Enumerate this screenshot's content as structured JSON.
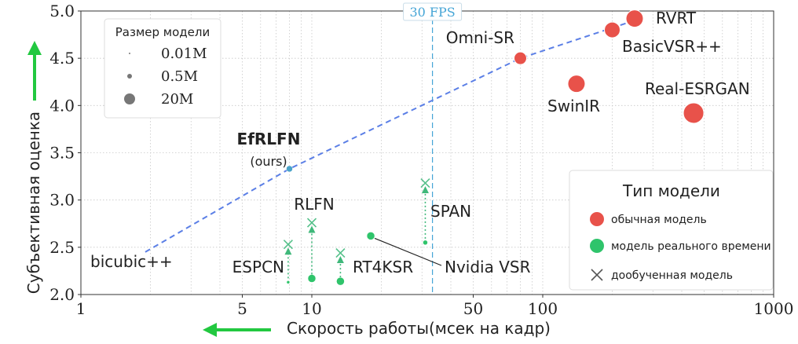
{
  "chart_data": {
    "type": "scatter",
    "xlabel": "Скорость работы(мсек на кадр)",
    "ylabel": "Субъективная оценка",
    "x_scale": "log",
    "xlim": [
      1,
      1000
    ],
    "ylim": [
      2.0,
      5.0
    ],
    "x_ticks": [
      1,
      5,
      10,
      50,
      100,
      1000
    ],
    "x_tick_labels": [
      "1",
      "5",
      "10",
      "50",
      "100",
      "1000"
    ],
    "y_ticks": [
      2.0,
      2.5,
      3.0,
      3.5,
      4.0,
      4.5,
      5.0
    ],
    "y_tick_labels": [
      "2.0",
      "2.5",
      "3.0",
      "3.5",
      "4.0",
      "4.5",
      "5.0"
    ],
    "grid": true,
    "fps_line": {
      "x": 33.3,
      "label": "30 FPS"
    },
    "trend_line": [
      [
        1.9,
        2.45
      ],
      [
        8.0,
        3.33
      ],
      [
        80,
        4.5
      ],
      [
        250,
        4.9
      ]
    ],
    "points": [
      {
        "name": "RVRT",
        "x": 250,
        "y": 4.92,
        "kind": "regular",
        "size": 11
      },
      {
        "name": "BasicVSR++",
        "x": 200,
        "y": 4.8,
        "kind": "regular",
        "size": 10
      },
      {
        "name": "Omni-SR",
        "x": 80,
        "y": 4.5,
        "kind": "regular",
        "size": 8
      },
      {
        "name": "SwinIR",
        "x": 140,
        "y": 4.23,
        "kind": "regular",
        "size": 11
      },
      {
        "name": "Real-ESRGAN",
        "x": 450,
        "y": 3.92,
        "kind": "regular",
        "size": 13
      },
      {
        "name": "EfRLFN",
        "x": 8.0,
        "y": 3.33,
        "kind": "ours",
        "size": 4
      },
      {
        "name": "Nvidia VSR",
        "x": 18,
        "y": 2.62,
        "kind": "realtime",
        "size": 5
      },
      {
        "name": "SPAN",
        "x": 31,
        "y": 2.55,
        "kind": "realtime",
        "size": 3
      },
      {
        "name": "RLFN",
        "x": 10,
        "y": 2.17,
        "kind": "realtime",
        "size": 5
      },
      {
        "name": "RT4KSR",
        "x": 13.3,
        "y": 2.14,
        "kind": "realtime",
        "size": 5
      },
      {
        "name": "ESPCN",
        "x": 7.9,
        "y": 2.13,
        "kind": "realtime",
        "size": 2
      },
      {
        "name": "bicubic++",
        "x": 1.9,
        "y": 2.45,
        "kind": "none",
        "size": 0
      }
    ],
    "finetuned": [
      {
        "name": "SPAN",
        "x": 31,
        "y_from": 2.55,
        "y_to": 3.18
      },
      {
        "name": "RLFN",
        "x": 10,
        "y_from": 2.17,
        "y_to": 2.76
      },
      {
        "name": "RT4KSR",
        "x": 13.3,
        "y_from": 2.14,
        "y_to": 2.44
      },
      {
        "name": "ESPCN",
        "x": 7.9,
        "y_from": 2.13,
        "y_to": 2.53
      }
    ],
    "labels": {
      "RVRT": "RVRT",
      "BasicVSR++": "BasicVSR++",
      "Omni-SR": "Omni-SR",
      "SwinIR": "SwinIR",
      "Real-ESRGAN": "Real-ESRGAN",
      "EfRLFN": "EfRLFN",
      "EfRLFN_sub": "(ours)",
      "Nvidia VSR": "Nvidia VSR",
      "SPAN": "SPAN",
      "RLFN": "RLFN",
      "RT4KSR": "RT4KSR",
      "ESPCN": "ESPCN",
      "bicubic++": "bicubic++"
    },
    "size_legend": {
      "title": "Размер модели",
      "entries": [
        "0.01M",
        "0.5M",
        "20M"
      ]
    },
    "type_legend": {
      "title": "Тип модели",
      "entries": [
        "обычная модель",
        "модель реального времени",
        "дообученная модель"
      ]
    },
    "colors": {
      "regular": "#e8524a",
      "realtime": "#2fc46b",
      "ours": "#4aa3c8",
      "trend": "#5b7fe6",
      "fps": "#45a5d6",
      "arrow": "#22c840",
      "finetune": "#3fb87a",
      "grid": "#c8c8c8"
    }
  }
}
